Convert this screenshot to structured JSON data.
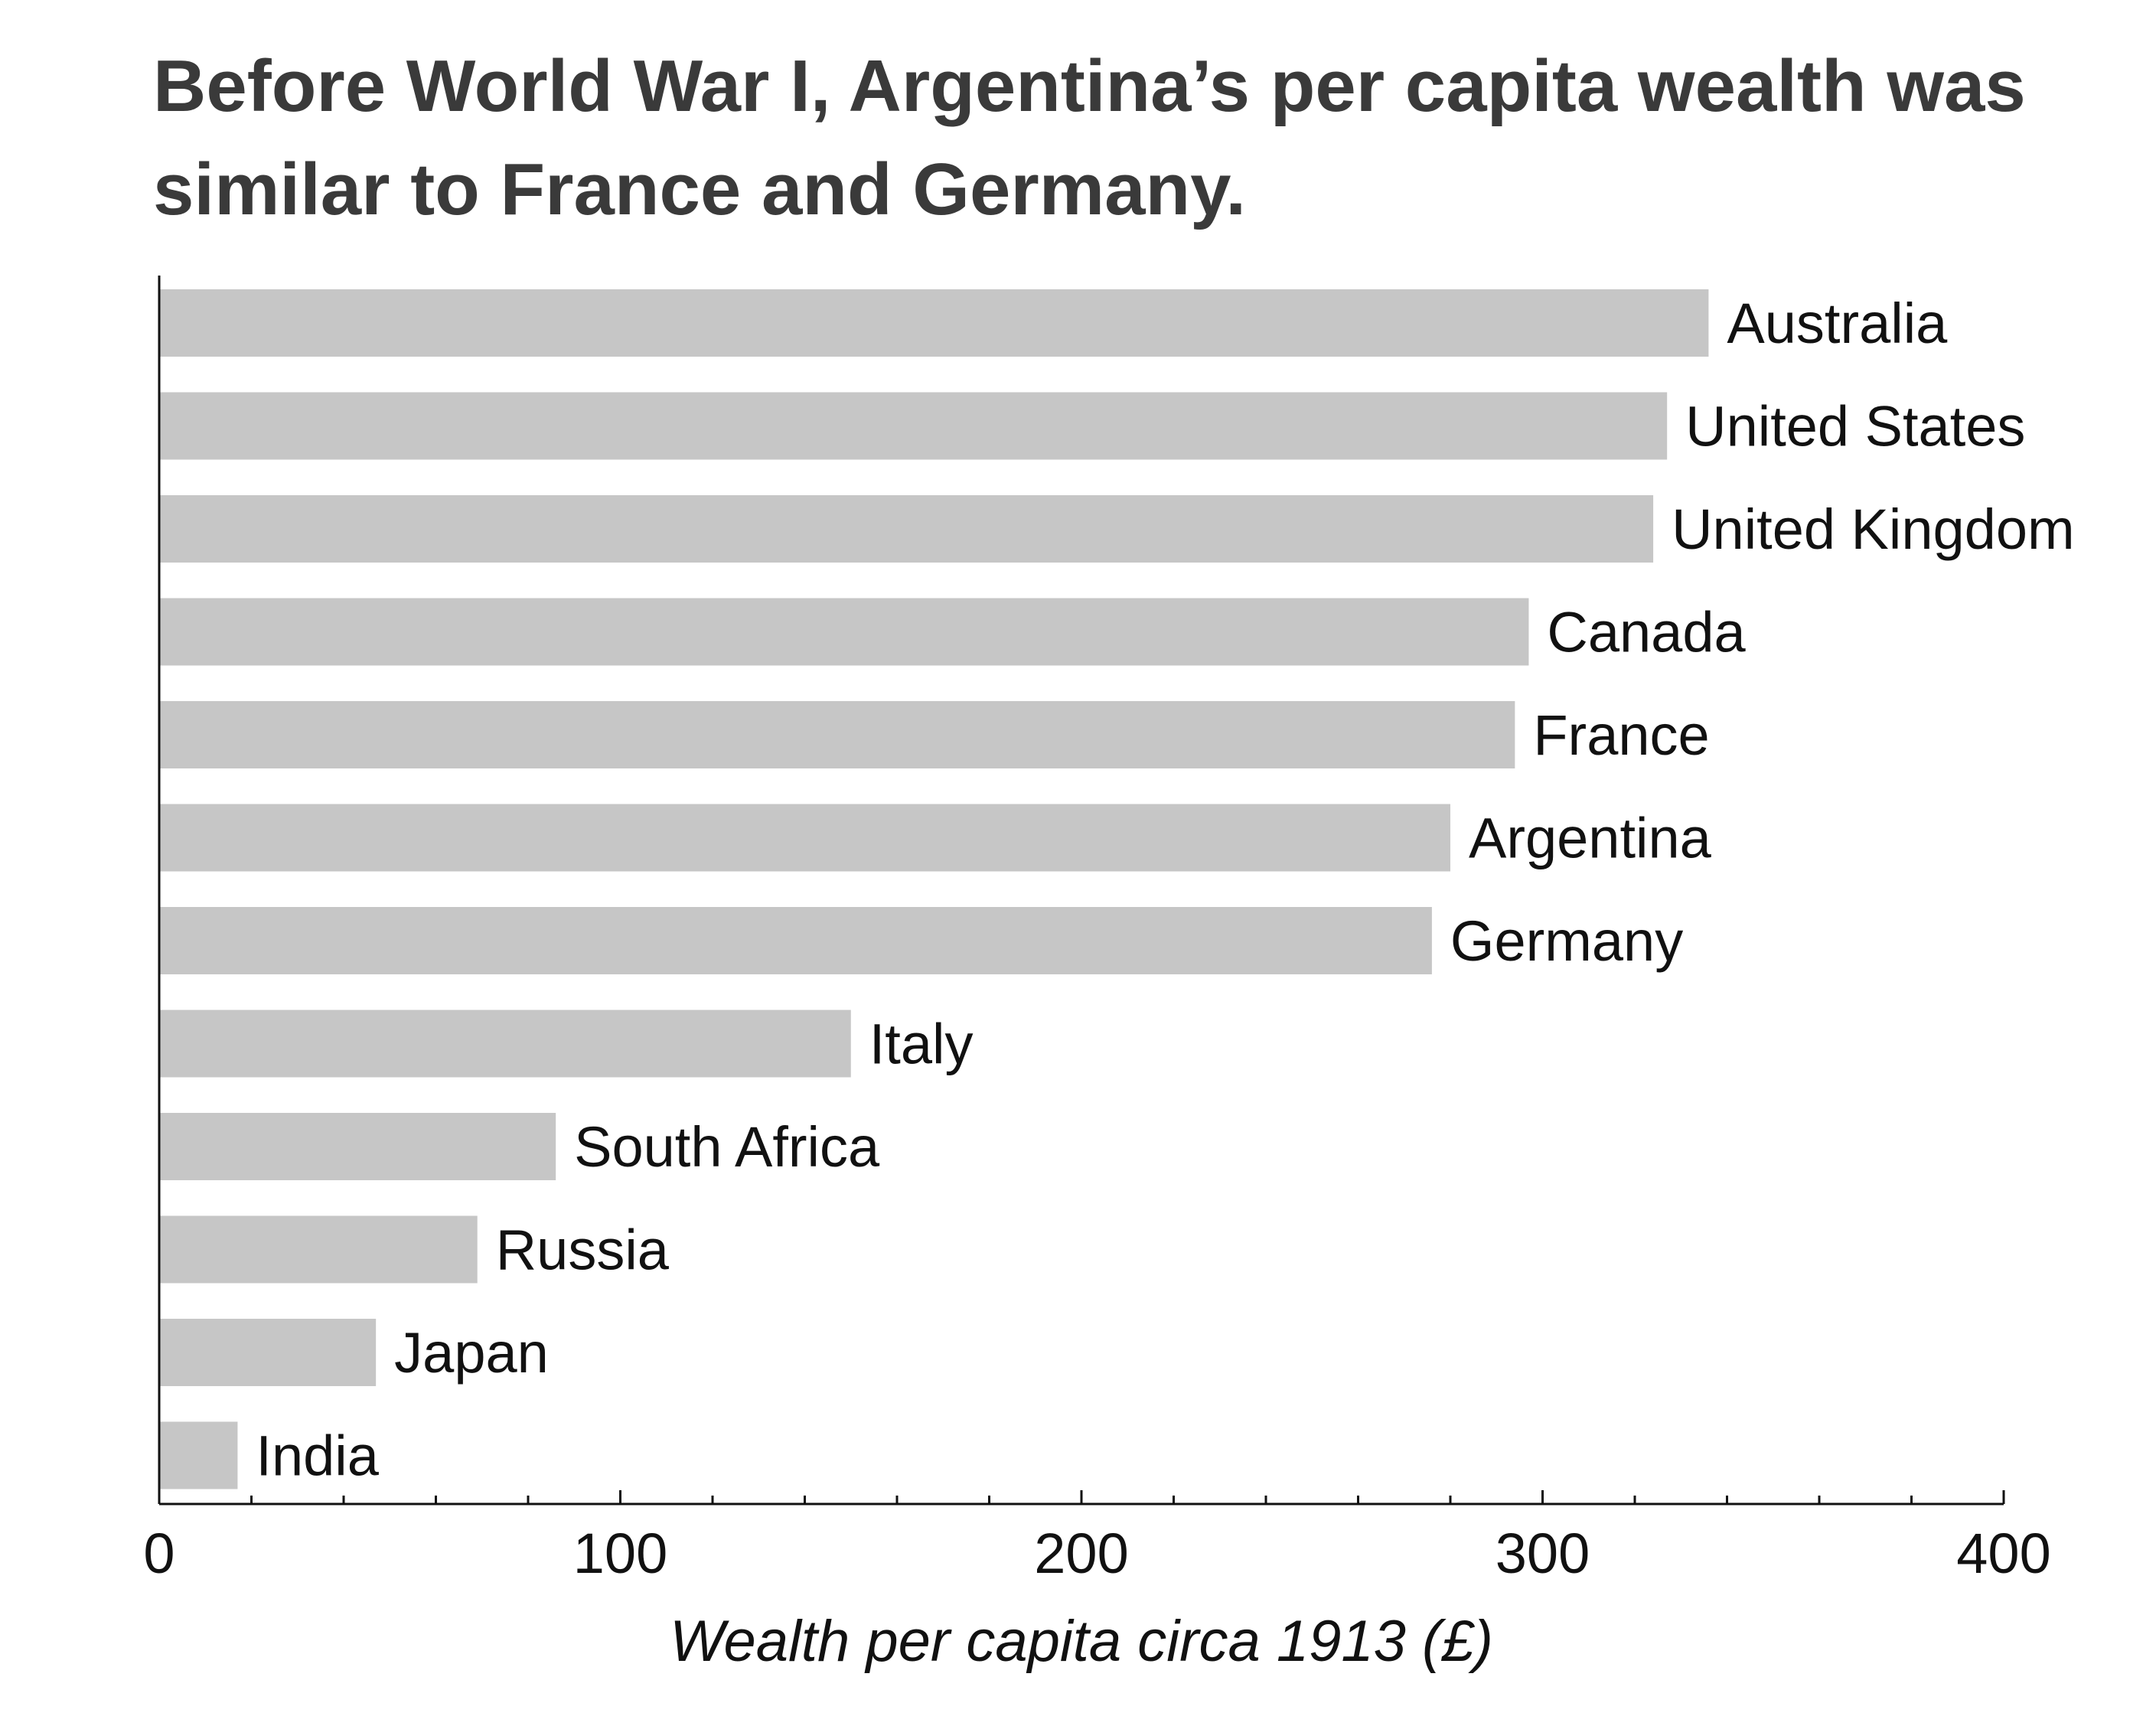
{
  "title": "Before World War I, Argentina’s per capita wealth was similar to France and Germany.",
  "chart_data": {
    "type": "bar",
    "orientation": "horizontal",
    "title": "Before World War I, Argentina’s per capita wealth was similar to France and Germany.",
    "xlabel": "Wealth per capita circa 1913 (£)",
    "ylabel": "",
    "xlim": [
      0,
      400
    ],
    "xticks": [
      "0",
      "100",
      "200",
      "300",
      "400"
    ],
    "grid": false,
    "legend": "none",
    "bar_color": "#c6c6c6",
    "categories": [
      "Australia",
      "United States",
      "United Kingdom",
      "Canada",
      "France",
      "Argentina",
      "Germany",
      "Italy",
      "South Africa",
      "Russia",
      "Japan",
      "India"
    ],
    "values": [
      336,
      327,
      324,
      297,
      294,
      280,
      276,
      150,
      86,
      69,
      47,
      17
    ]
  }
}
